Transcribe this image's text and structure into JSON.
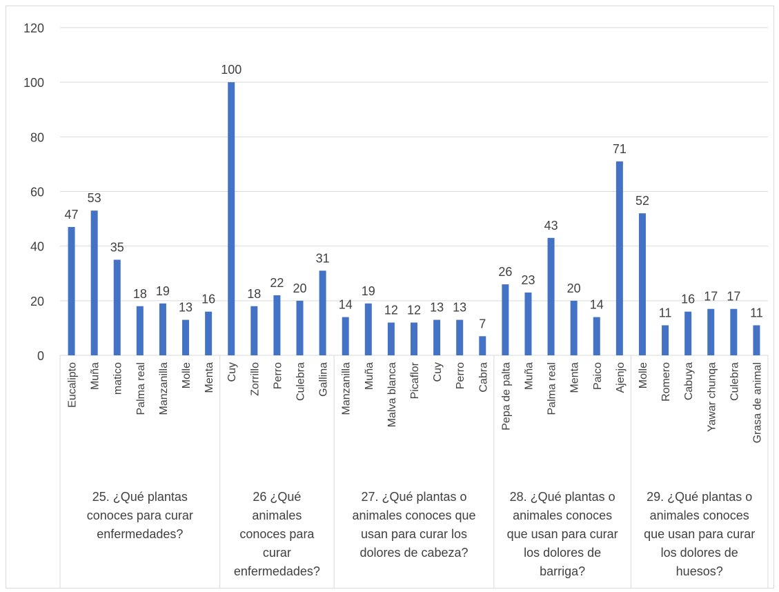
{
  "chart_data": {
    "type": "bar",
    "ylim": [
      0,
      120
    ],
    "yticks": [
      0,
      20,
      40,
      60,
      80,
      100,
      120
    ],
    "grid": true,
    "bar_color": "#4472c4",
    "groups": [
      {
        "label_lines": [
          "25. ¿Qué plantas",
          "conoces para curar",
          "enfermedades?"
        ],
        "categories": [
          "Eucalipto",
          "Muña",
          "matico",
          "Palma real",
          "Manzanilla",
          "Molle",
          "Menta"
        ],
        "values": [
          47,
          53,
          35,
          18,
          19,
          13,
          16
        ]
      },
      {
        "label_lines": [
          "26 ¿Qué",
          "animales",
          "conoces para",
          "curar",
          "enfermedades?"
        ],
        "categories": [
          "Cuy",
          "Zorrillo",
          "Perro",
          "Culebra",
          "Gallina"
        ],
        "values": [
          100,
          18,
          22,
          20,
          31
        ]
      },
      {
        "label_lines": [
          "27. ¿Qué plantas o",
          "animales conoces que",
          "usan para curar los",
          "dolores de cabeza?"
        ],
        "categories": [
          "Manzanilla",
          "Muña",
          "Malva blanca",
          "Picaflor",
          "Cuy",
          "Perro",
          "Cabra"
        ],
        "values": [
          14,
          19,
          12,
          12,
          13,
          13,
          7
        ]
      },
      {
        "label_lines": [
          "28. ¿Qué plantas o",
          "animales conoces",
          "que usan para curar",
          "los dolores de",
          "barriga?"
        ],
        "categories": [
          "Pepa de palta",
          "Muña",
          "Palma real",
          "Menta",
          "Paico",
          "Ajenjo"
        ],
        "values": [
          26,
          23,
          43,
          20,
          14,
          71
        ]
      },
      {
        "label_lines": [
          "29. ¿Qué plantas o",
          "animales conoces",
          "que usan para curar",
          "los dolores de",
          "huesos?"
        ],
        "categories": [
          "Molle",
          "Romero",
          "Cabuya",
          "Yawar chunqa",
          "Culebra",
          "Grasa de animal"
        ],
        "values": [
          52,
          11,
          16,
          17,
          17,
          11
        ]
      }
    ]
  }
}
